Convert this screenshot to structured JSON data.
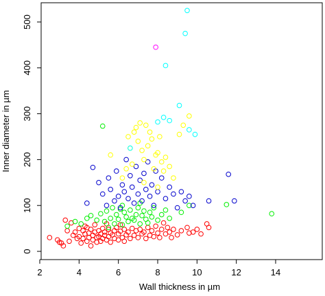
{
  "chart_data": {
    "type": "scatter",
    "title": "",
    "xlabel": "Wall thickness in µm",
    "ylabel": "Inner diameter in µm",
    "xlim": [
      2,
      14
    ],
    "ylim": [
      0,
      540
    ],
    "xticks": [
      2,
      4,
      6,
      8,
      10,
      12,
      14
    ],
    "yticks": [
      0,
      100,
      200,
      300,
      400,
      500
    ],
    "grid": false,
    "legend": "none",
    "marker": "open-circle",
    "series": [
      {
        "color": "#ff0000",
        "points": [
          [
            2.5,
            30
          ],
          [
            2.9,
            25
          ],
          [
            3.0,
            20
          ],
          [
            3.1,
            18
          ],
          [
            3.2,
            12
          ],
          [
            3.3,
            68
          ],
          [
            3.4,
            45
          ],
          [
            3.5,
            22
          ],
          [
            3.6,
            62
          ],
          [
            3.7,
            35
          ],
          [
            3.8,
            42
          ],
          [
            3.9,
            28
          ],
          [
            4.0,
            50
          ],
          [
            4.0,
            32
          ],
          [
            4.1,
            18
          ],
          [
            4.2,
            45
          ],
          [
            4.2,
            28
          ],
          [
            4.3,
            38
          ],
          [
            4.4,
            52
          ],
          [
            4.4,
            22
          ],
          [
            4.5,
            40
          ],
          [
            4.5,
            30
          ],
          [
            4.6,
            48
          ],
          [
            4.6,
            12
          ],
          [
            4.7,
            35
          ],
          [
            4.7,
            25
          ],
          [
            4.8,
            58
          ],
          [
            4.8,
            42
          ],
          [
            4.9,
            30
          ],
          [
            4.9,
            20
          ],
          [
            5.0,
            45
          ],
          [
            5.0,
            32
          ],
          [
            5.1,
            38
          ],
          [
            5.1,
            22
          ],
          [
            5.2,
            50
          ],
          [
            5.2,
            28
          ],
          [
            5.3,
            42
          ],
          [
            5.3,
            35
          ],
          [
            5.4,
            25
          ],
          [
            5.5,
            48
          ],
          [
            5.5,
            32
          ],
          [
            5.6,
            40
          ],
          [
            5.6,
            20
          ],
          [
            5.7,
            36
          ],
          [
            5.8,
            45
          ],
          [
            5.8,
            28
          ],
          [
            5.9,
            52
          ],
          [
            6.0,
            38
          ],
          [
            6.0,
            25
          ],
          [
            6.1,
            44
          ],
          [
            6.2,
            30
          ],
          [
            6.3,
            48
          ],
          [
            6.3,
            22
          ],
          [
            6.4,
            36
          ],
          [
            6.5,
            42
          ],
          [
            6.6,
            28
          ],
          [
            6.7,
            50
          ],
          [
            6.8,
            35
          ],
          [
            6.9,
            45
          ],
          [
            7.0,
            30
          ],
          [
            7.1,
            48
          ],
          [
            7.2,
            38
          ],
          [
            7.3,
            42
          ],
          [
            7.4,
            28
          ],
          [
            7.5,
            52
          ],
          [
            7.6,
            35
          ],
          [
            7.7,
            45
          ],
          [
            7.8,
            32
          ],
          [
            7.9,
            55
          ],
          [
            8.0,
            40
          ],
          [
            8.1,
            30
          ],
          [
            8.2,
            48
          ],
          [
            8.3,
            62
          ],
          [
            8.4,
            38
          ],
          [
            8.5,
            52
          ],
          [
            8.6,
            42
          ],
          [
            8.7,
            30
          ],
          [
            8.8,
            48
          ],
          [
            9.0,
            36
          ],
          [
            9.2,
            45
          ],
          [
            9.5,
            52
          ],
          [
            9.6,
            40
          ],
          [
            9.8,
            42
          ],
          [
            10.0,
            48
          ],
          [
            10.2,
            38
          ],
          [
            10.5,
            60
          ],
          [
            10.6,
            52
          ],
          [
            4.3,
            55
          ],
          [
            5.4,
            60
          ],
          [
            6.1,
            58
          ]
        ]
      },
      {
        "color": "#00ee00",
        "points": [
          [
            3.4,
            55
          ],
          [
            3.8,
            65
          ],
          [
            4.1,
            60
          ],
          [
            4.4,
            72
          ],
          [
            4.6,
            78
          ],
          [
            4.9,
            68
          ],
          [
            5.1,
            82
          ],
          [
            5.2,
            273
          ],
          [
            5.3,
            65
          ],
          [
            5.4,
            88
          ],
          [
            5.6,
            72
          ],
          [
            5.7,
            95
          ],
          [
            5.8,
            60
          ],
          [
            5.9,
            80
          ],
          [
            6.0,
            70
          ],
          [
            6.1,
            92
          ],
          [
            6.2,
            58
          ],
          [
            6.3,
            85
          ],
          [
            6.4,
            75
          ],
          [
            6.5,
            65
          ],
          [
            6.6,
            90
          ],
          [
            6.7,
            72
          ],
          [
            6.8,
            68
          ],
          [
            6.9,
            80
          ],
          [
            7.0,
            95
          ],
          [
            7.1,
            60
          ],
          [
            7.2,
            78
          ],
          [
            7.3,
            88
          ],
          [
            7.4,
            70
          ],
          [
            7.5,
            62
          ],
          [
            7.6,
            85
          ],
          [
            7.7,
            75
          ],
          [
            7.8,
            95
          ],
          [
            8.0,
            68
          ],
          [
            8.2,
            80
          ],
          [
            8.4,
            90
          ],
          [
            8.6,
            72
          ],
          [
            9.2,
            85
          ],
          [
            9.6,
            100
          ],
          [
            11.5,
            102
          ],
          [
            13.8,
            82
          ],
          [
            5.5,
            52
          ],
          [
            6.2,
            100
          ],
          [
            7.1,
            105
          ]
        ]
      },
      {
        "color": "#0000cc",
        "points": [
          [
            4.4,
            105
          ],
          [
            4.7,
            183
          ],
          [
            5.0,
            150
          ],
          [
            5.2,
            125
          ],
          [
            5.4,
            100
          ],
          [
            5.5,
            160
          ],
          [
            5.6,
            135
          ],
          [
            5.8,
            110
          ],
          [
            5.9,
            175
          ],
          [
            6.0,
            120
          ],
          [
            6.1,
            95
          ],
          [
            6.2,
            145
          ],
          [
            6.3,
            130
          ],
          [
            6.4,
            200
          ],
          [
            6.5,
            115
          ],
          [
            6.6,
            165
          ],
          [
            6.7,
            140
          ],
          [
            6.8,
            105
          ],
          [
            6.9,
            185
          ],
          [
            7.0,
            125
          ],
          [
            7.1,
            155
          ],
          [
            7.2,
            110
          ],
          [
            7.3,
            170
          ],
          [
            7.4,
            135
          ],
          [
            7.5,
            195
          ],
          [
            7.6,
            120
          ],
          [
            7.7,
            145
          ],
          [
            7.8,
            100
          ],
          [
            7.9,
            175
          ],
          [
            8.0,
            130
          ],
          [
            8.2,
            160
          ],
          [
            8.4,
            115
          ],
          [
            8.6,
            140
          ],
          [
            8.8,
            125
          ],
          [
            9.0,
            95
          ],
          [
            9.2,
            130
          ],
          [
            9.4,
            110
          ],
          [
            9.6,
            120
          ],
          [
            9.8,
            100
          ],
          [
            10.6,
            110
          ],
          [
            11.6,
            168
          ],
          [
            11.9,
            110
          ]
        ]
      },
      {
        "color": "#ffff00",
        "points": [
          [
            5.6,
            210
          ],
          [
            6.4,
            180
          ],
          [
            6.5,
            250
          ],
          [
            6.6,
            225
          ],
          [
            6.7,
            190
          ],
          [
            6.8,
            260
          ],
          [
            6.9,
            270
          ],
          [
            7.0,
            240
          ],
          [
            7.1,
            280
          ],
          [
            7.2,
            220
          ],
          [
            7.3,
            200
          ],
          [
            7.4,
            275
          ],
          [
            7.5,
            230
          ],
          [
            7.6,
            260
          ],
          [
            7.7,
            245
          ],
          [
            7.8,
            180
          ],
          [
            7.9,
            210
          ],
          [
            8.0,
            215
          ],
          [
            8.1,
            250
          ],
          [
            8.2,
            195
          ],
          [
            8.3,
            175
          ],
          [
            8.4,
            205
          ],
          [
            8.6,
            185
          ],
          [
            8.8,
            160
          ],
          [
            9.1,
            255
          ],
          [
            9.3,
            275
          ],
          [
            9.6,
            295
          ],
          [
            6.2,
            160
          ],
          [
            7.3,
            150
          ],
          [
            8.0,
            140
          ]
        ]
      },
      {
        "color": "#00ffff",
        "points": [
          [
            8.0,
            282
          ],
          [
            8.3,
            292
          ],
          [
            8.4,
            405
          ],
          [
            8.6,
            285
          ],
          [
            9.1,
            318
          ],
          [
            9.4,
            475
          ],
          [
            9.5,
            525
          ],
          [
            9.6,
            265
          ],
          [
            9.9,
            255
          ],
          [
            6.6,
            225
          ]
        ]
      },
      {
        "color": "#ff00ff",
        "points": [
          [
            7.9,
            445
          ]
        ]
      }
    ]
  }
}
